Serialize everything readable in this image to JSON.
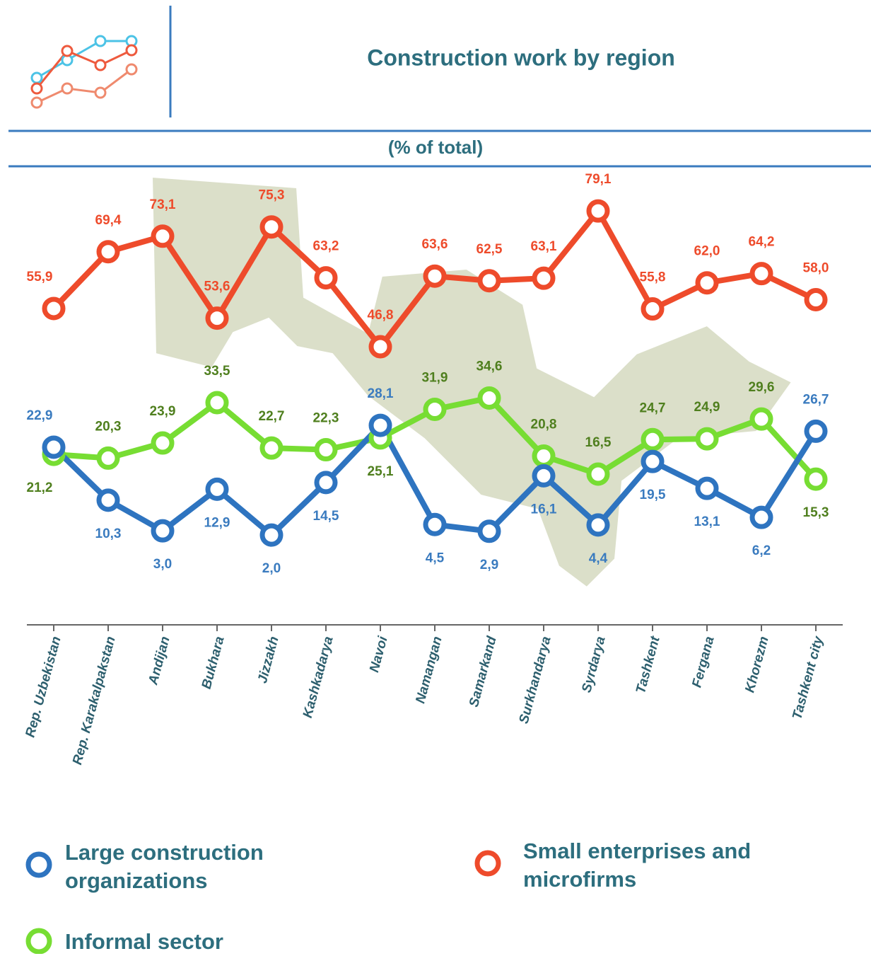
{
  "chart_data": {
    "type": "line",
    "title": "Construction work by region",
    "subtitle": "(% of total)",
    "categories": [
      "Rep. Uzbekistan",
      "Rep. Karakalpakstan",
      "Andijan",
      "Bukhara",
      "Jizzakh",
      "Kashkadarya",
      "Navoi",
      "Namangan",
      "Samarkand",
      "Surkhandarya",
      "Syrdarya",
      "Tashkent",
      "Fergana",
      "Khorezm",
      "Tashkent city"
    ],
    "series": [
      {
        "name": "Large construction organizations",
        "color": "#2e74c0",
        "label_color": "#3a7bbf",
        "values": [
          22.9,
          10.3,
          3.0,
          12.9,
          2.0,
          14.5,
          28.1,
          4.5,
          2.9,
          16.1,
          4.4,
          19.5,
          13.1,
          6.2,
          26.7
        ],
        "value_labels": [
          "22,9",
          "10,3",
          "3,0",
          "12,9",
          "2,0",
          "14,5",
          "28,1",
          "4,5",
          "2,9",
          "16,1",
          "4,4",
          "19,5",
          "13,1",
          "6,2",
          "26,7"
        ]
      },
      {
        "name": "Small enterprises and microfirms",
        "color": "#ee4b2b",
        "label_color": "#ee4b2b",
        "values": [
          55.9,
          69.4,
          73.1,
          53.6,
          75.3,
          63.2,
          46.8,
          63.6,
          62.5,
          63.1,
          79.1,
          55.8,
          62.0,
          64.2,
          58.0
        ],
        "value_labels": [
          "55,9",
          "69,4",
          "73,1",
          "53,6",
          "75,3",
          "63,2",
          "46,8",
          "63,6",
          "62,5",
          "63,1",
          "79,1",
          "55,8",
          "62,0",
          "64,2",
          "58,0"
        ]
      },
      {
        "name": "Informal sector",
        "color": "#77dd33",
        "label_color": "#4f7f1e",
        "values": [
          21.2,
          20.3,
          23.9,
          33.5,
          22.7,
          22.3,
          25.1,
          31.9,
          34.6,
          20.8,
          16.5,
          24.7,
          24.9,
          29.6,
          15.3
        ],
        "value_labels": [
          "21,2",
          "20,3",
          "23,9",
          "33,5",
          "22,7",
          "22,3",
          "25,1",
          "31,9",
          "34,6",
          "20,8",
          "16,5",
          "24,7",
          "24,9",
          "29,6",
          "15,3"
        ]
      }
    ]
  }
}
